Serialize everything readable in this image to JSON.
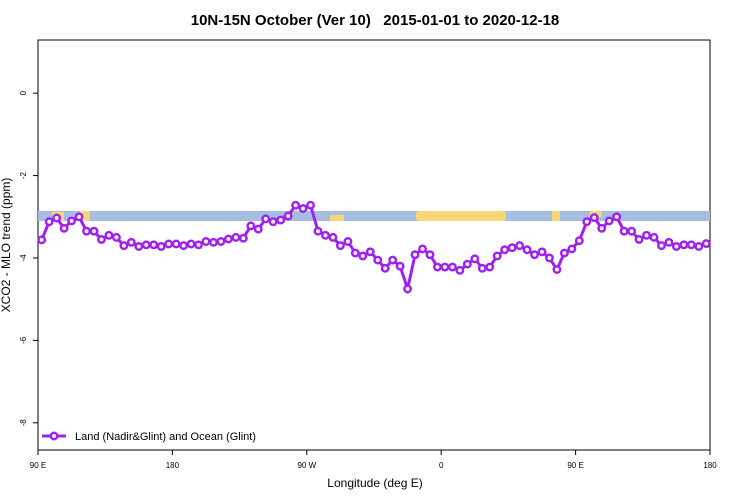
{
  "chart_data": {
    "type": "line",
    "title": "10N-15N October (Ver 10)   2015-01-01 to 2020-12-18",
    "x_label": "Longitude (deg E)",
    "y_label": "XCO2 - MLO trend (ppm)",
    "x": [
      92.5,
      97.5,
      102.5,
      107.5,
      112.5,
      117.5,
      122.5,
      127.5,
      132.5,
      137.5,
      142.5,
      147.5,
      152.5,
      157.5,
      162.5,
      167.5,
      172.5,
      177.5,
      182.5,
      187.5,
      192.5,
      197.5,
      202.5,
      207.5,
      212.5,
      217.5,
      222.5,
      227.5,
      232.5,
      237.5,
      242.5,
      247.5,
      252.5,
      257.5,
      262.5,
      267.5,
      272.5,
      277.5,
      282.5,
      287.5,
      292.5,
      297.5,
      302.5,
      307.5,
      312.5,
      317.5,
      322.5,
      327.5,
      332.5,
      337.5,
      342.5,
      347.5,
      352.5,
      357.5,
      362.5,
      367.5,
      372.5,
      377.5,
      382.5,
      387.5,
      392.5,
      397.5,
      402.5,
      407.5,
      412.5,
      417.5,
      422.5,
      427.5,
      432.5,
      437.5,
      442.5,
      447.5,
      452.5,
      457.5,
      462.5,
      467.5,
      472.5,
      477.5,
      482.5,
      487.5,
      492.5,
      497.5,
      502.5,
      507.5,
      512.5,
      517.5,
      522.5,
      527.5,
      532.5,
      537.5
    ],
    "series": [
      {
        "name": "Land (Nadir&Glint) and Ocean (Glint)",
        "color": "#a020f0",
        "values": [
          -3.56,
          -3.12,
          -3.03,
          -3.28,
          -3.1,
          -3.0,
          -3.35,
          -3.35,
          -3.55,
          -3.45,
          -3.5,
          -3.7,
          -3.62,
          -3.72,
          -3.68,
          -3.68,
          -3.72,
          -3.66,
          -3.66,
          -3.7,
          -3.66,
          -3.68,
          -3.6,
          -3.62,
          -3.6,
          -3.54,
          -3.5,
          -3.52,
          -3.22,
          -3.3,
          -3.05,
          -3.12,
          -3.08,
          -2.98,
          -2.72,
          -2.8,
          -2.72,
          -3.35,
          -3.45,
          -3.5,
          -3.7,
          -3.6,
          -3.88,
          -3.95,
          -3.85,
          -4.05,
          -4.25,
          -4.05,
          -4.2,
          -4.75,
          -3.92,
          -3.78,
          -3.92,
          -4.22,
          -4.22,
          -4.22,
          -4.3,
          -4.15,
          -4.02,
          -4.25,
          -4.22,
          -3.95,
          -3.8,
          -3.75,
          -3.7,
          -3.8,
          -3.92,
          -3.85,
          -4.0,
          -4.28,
          -3.88,
          -3.78,
          -3.58,
          -3.12,
          -3.02,
          -3.28,
          -3.1,
          -3.0,
          -3.35,
          -3.35,
          -3.55,
          -3.45,
          -3.5,
          -3.7,
          -3.62,
          -3.72,
          -3.68,
          -3.68,
          -3.72,
          -3.65
        ]
      }
    ],
    "xlim": [
      90,
      540
    ],
    "xticks": [
      {
        "value": 90,
        "label": "90 E"
      },
      180,
      {
        "value": 270,
        "label": "90 W"
      },
      {
        "value": 360,
        "label": "0"
      },
      {
        "value": 450,
        "label": "90 E"
      },
      {
        "value": 540,
        "label": "180"
      }
    ],
    "ylim": [
      -8.66,
      1.29
    ],
    "yticks": [
      0,
      -2,
      -4,
      -6,
      -8
    ],
    "legend": "bottom-left"
  }
}
